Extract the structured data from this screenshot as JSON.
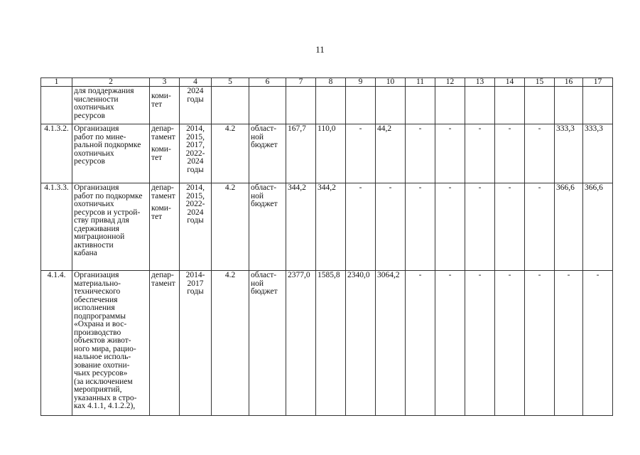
{
  "page_number": "11",
  "table": {
    "header": [
      "1",
      "2",
      "3",
      "4",
      "5",
      "6",
      "7",
      "8",
      "9",
      "10",
      "11",
      "12",
      "13",
      "14",
      "15",
      "16",
      "17"
    ],
    "rows": [
      {
        "num": "",
        "name": [
          "для поддержания",
          "численности",
          "охотничьих",
          "ресурсов"
        ],
        "executor": [
          "коми-",
          "тет"
        ],
        "years": [
          "2024",
          "годы"
        ],
        "indicator": "",
        "source": [],
        "values": [
          "",
          "",
          "",
          "",
          "",
          "",
          "",
          "",
          "",
          "",
          ""
        ]
      },
      {
        "num": "4.1.3.2.",
        "name": [
          "Организация",
          "работ по мине-",
          "ральной подкормке",
          "охотничьих",
          "ресурсов"
        ],
        "executor": [
          "депар-",
          "тамент",
          "коми-",
          "тет"
        ],
        "years": [
          "2014,",
          "2015,",
          "2017,",
          "2022-",
          "2024",
          "годы"
        ],
        "indicator": "4.2",
        "source": [
          "област-",
          "ной",
          "бюджет"
        ],
        "values": [
          "167,7",
          "110,0",
          "-",
          "44,2",
          "-",
          "-",
          "-",
          "-",
          "-",
          "333,3",
          "333,3"
        ]
      },
      {
        "num": "4.1.3.3.",
        "name": [
          "Организация",
          "работ по подкормке",
          "охотничьих",
          "ресурсов и устрой-",
          "ству привад для",
          "сдерживания",
          "миграционной",
          "активности",
          "кабана"
        ],
        "executor": [
          "депар-",
          "тамент",
          "коми-",
          "тет"
        ],
        "years": [
          "2014,",
          "2015,",
          "2022-",
          "2024",
          "годы"
        ],
        "indicator": "4.2",
        "source": [
          "област-",
          "ной",
          "бюджет"
        ],
        "values": [
          "344,2",
          "344,2",
          "-",
          "-",
          "-",
          "-",
          "-",
          "-",
          "-",
          "366,6",
          "366,6"
        ]
      },
      {
        "num": "4.1.4.",
        "name": [
          "Организация",
          "материально-",
          "технического",
          "обеспечения",
          "исполнения",
          "подпрограммы",
          "«Охрана и вос-",
          "производство",
          "объектов живот-",
          "ного мира, рацио-",
          "нальное исполь-",
          "зование охотни-",
          "чьих ресурсов»",
          "(за исключением",
          "мероприятий,",
          "указанных в стро-",
          "ках 4.1.1, 4.1.2.2),"
        ],
        "executor": [
          "депар-",
          "тамент"
        ],
        "years": [
          "2014-",
          "2017",
          "годы"
        ],
        "indicator": "4.2",
        "source": [
          "област-",
          "ной",
          "бюджет"
        ],
        "values": [
          "2377,0",
          "1585,8",
          "2340,0",
          "3064,2",
          "-",
          "-",
          "-",
          "-",
          "-",
          "-",
          "-"
        ]
      }
    ]
  }
}
